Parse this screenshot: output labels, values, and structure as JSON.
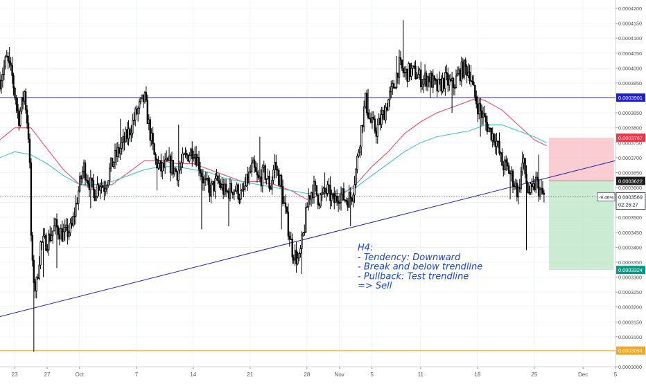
{
  "chart_data": {
    "type": "candlestick",
    "timeframe": "H4",
    "ylim": [
      0.0003,
      0.00042
    ],
    "y_ticks": [
      "0.0003000",
      "0.0003050",
      "0.0003100",
      "0.0003150",
      "0.0003200",
      "0.0003250",
      "0.0003300",
      "0.0003350",
      "0.0003400",
      "0.0003450",
      "0.0003500",
      "0.0003550",
      "0.0003600",
      "0.0003650",
      "0.0003700",
      "0.0003750",
      "0.0003800",
      "0.0003850",
      "0.0003900",
      "0.0003950",
      "0.0004000",
      "0.0004050",
      "0.0004100",
      "0.0004150",
      "0.0004200"
    ],
    "x_ticks": [
      {
        "label": "23",
        "x": 1.0
      },
      {
        "label": "27",
        "x": 5.0
      },
      {
        "label": "Oct",
        "x": 9.0
      },
      {
        "label": "7",
        "x": 16.0
      },
      {
        "label": "14",
        "x": 23.0
      },
      {
        "label": "21",
        "x": 30.0
      },
      {
        "label": "28",
        "x": 37.0
      },
      {
        "label": "Nov",
        "x": 41.0
      },
      {
        "label": "5",
        "x": 45.0
      },
      {
        "label": "11",
        "x": 51.0
      },
      {
        "label": "18",
        "x": 58.0
      },
      {
        "label": "25",
        "x": 65.0
      },
      {
        "label": "Dec",
        "x": 71.0
      },
      {
        "label": "5",
        "x": 75.0
      }
    ],
    "x_range": [
      -0.8,
      75.0
    ],
    "price_path": [
      [
        -0.8,
        0.000396
      ],
      [
        0,
        0.000403
      ],
      [
        0.7,
        0.000397
      ],
      [
        1.5,
        0.000383
      ],
      [
        2.2,
        0.000392
      ],
      [
        2.8,
        0.000375
      ],
      [
        3.1,
        0.000335
      ],
      [
        3.6,
        0.000325
      ],
      [
        4.2,
        0.000341
      ],
      [
        5,
        0.000342
      ],
      [
        6,
        0.000347
      ],
      [
        7,
        0.000344
      ],
      [
        8,
        0.000346
      ],
      [
        8.8,
        0.000358
      ],
      [
        9.5,
        0.000367
      ],
      [
        10,
        0.000363
      ],
      [
        10.8,
        0.000358
      ],
      [
        11.5,
        0.000362
      ],
      [
        12,
        0.00036
      ],
      [
        13,
        0.000368
      ],
      [
        14,
        0.000373
      ],
      [
        15,
        0.000378
      ],
      [
        16,
        0.000385
      ],
      [
        17,
        0.00039
      ],
      [
        17.7,
        0.000378
      ],
      [
        18.3,
        0.000369
      ],
      [
        19,
        0.000366
      ],
      [
        20,
        0.000368
      ],
      [
        21,
        0.000365
      ],
      [
        22,
        0.00037
      ],
      [
        23,
        0.000373
      ],
      [
        23.7,
        0.000368
      ],
      [
        24.3,
        0.000362
      ],
      [
        25,
        0.000359
      ],
      [
        26,
        0.000362
      ],
      [
        27,
        0.000358
      ],
      [
        28,
        0.00036
      ],
      [
        29,
        0.000357
      ],
      [
        29.6,
        0.000362
      ],
      [
        30.3,
        0.000367
      ],
      [
        31,
        0.000362
      ],
      [
        31.8,
        0.000365
      ],
      [
        32.5,
        0.00036
      ],
      [
        33,
        0.000368
      ],
      [
        33.7,
        0.000362
      ],
      [
        34.4,
        0.000351
      ],
      [
        35.2,
        0.000339
      ],
      [
        36,
        0.000335
      ],
      [
        36.6,
        0.000345
      ],
      [
        37.2,
        0.000357
      ],
      [
        37.8,
        0.00036
      ],
      [
        38.5,
        0.000356
      ],
      [
        39.5,
        0.000359
      ],
      [
        40.3,
        0.000355
      ],
      [
        41,
        0.000358
      ],
      [
        41.8,
        0.000356
      ],
      [
        42.5,
        0.000357
      ],
      [
        43,
        0.000365
      ],
      [
        43.6,
        0.000378
      ],
      [
        44.2,
        0.000389
      ],
      [
        44.8,
        0.000382
      ],
      [
        45.5,
        0.000379
      ],
      [
        46.2,
        0.000383
      ],
      [
        47,
        0.000389
      ],
      [
        47.7,
        0.000394
      ],
      [
        48.3,
        0.000401
      ],
      [
        49,
        0.000398
      ],
      [
        49.8,
        0.000399
      ],
      [
        50.5,
        0.000398
      ],
      [
        51.2,
        0.000396
      ],
      [
        52,
        0.000397
      ],
      [
        53,
        0.000393
      ],
      [
        54,
        0.000396
      ],
      [
        55,
        0.000394
      ],
      [
        55.7,
        0.000398
      ],
      [
        56.3,
        0.0004
      ],
      [
        57,
        0.000399
      ],
      [
        57.6,
        0.000391
      ],
      [
        58.1,
        0.000387
      ],
      [
        58.8,
        0.000383
      ],
      [
        59.5,
        0.000379
      ],
      [
        60.3,
        0.000376
      ],
      [
        61,
        0.000368
      ],
      [
        61.8,
        0.000366
      ],
      [
        62.5,
        0.000362
      ],
      [
        63,
        0.000358
      ],
      [
        63.6,
        0.000369
      ],
      [
        64.2,
        0.000359
      ],
      [
        64.7,
        0.000358
      ],
      [
        65.2,
        0.000362
      ],
      [
        65.8,
        0.000358
      ],
      [
        66.3,
        0.000357
      ]
    ],
    "wicks": [
      {
        "x": 0.3,
        "hi": 0.000407
      },
      {
        "x": 3.3,
        "lo": 0.000305
      },
      {
        "x": 4.6,
        "lo": 0.00033
      },
      {
        "x": 6.2,
        "lo": 0.000333
      },
      {
        "x": 10.3,
        "lo": 0.000353
      },
      {
        "x": 14.1,
        "hi": 0.000383
      },
      {
        "x": 17.2,
        "hi": 0.000392
      },
      {
        "x": 18.6,
        "lo": 0.000359
      },
      {
        "x": 21.2,
        "hi": 0.000381
      },
      {
        "x": 24.1,
        "lo": 0.000346
      },
      {
        "x": 27.3,
        "lo": 0.000347
      },
      {
        "x": 31.2,
        "hi": 0.000377
      },
      {
        "x": 33.2,
        "hi": 0.000369
      },
      {
        "x": 33.9,
        "lo": 0.000346
      },
      {
        "x": 36.3,
        "lo": 0.000331
      },
      {
        "x": 39.2,
        "hi": 0.000365
      },
      {
        "x": 42.4,
        "lo": 0.000347
      },
      {
        "x": 44.5,
        "hi": 0.000393
      },
      {
        "x": 48.0,
        "hi": 0.000404
      },
      {
        "x": 48.9,
        "hi": 0.000416
      },
      {
        "x": 52.2,
        "lo": 0.00039
      },
      {
        "x": 54.9,
        "lo": 0.000385
      },
      {
        "x": 57.2,
        "hi": 0.000401
      },
      {
        "x": 58.4,
        "lo": 0.000377
      },
      {
        "x": 62.0,
        "lo": 0.000356
      },
      {
        "x": 63.6,
        "hi": 0.000372
      },
      {
        "x": 64.1,
        "lo": 0.000339
      },
      {
        "x": 65.5,
        "hi": 0.000371
      }
    ],
    "ema_red": [
      [
        -0.8,
        0.000376
      ],
      [
        1,
        0.00038
      ],
      [
        3,
        0.00038
      ],
      [
        5,
        0.000373
      ],
      [
        7,
        0.000366
      ],
      [
        9,
        0.000361
      ],
      [
        11,
        0.00036
      ],
      [
        13,
        0.000361
      ],
      [
        15,
        0.000365
      ],
      [
        17,
        0.000369
      ],
      [
        19,
        0.000369
      ],
      [
        21,
        0.000368
      ],
      [
        23,
        0.000368
      ],
      [
        25,
        0.000366
      ],
      [
        27,
        0.000364
      ],
      [
        29,
        0.000362
      ],
      [
        31,
        0.000362
      ],
      [
        33,
        0.000361
      ],
      [
        35,
        0.000359
      ],
      [
        37,
        0.000356
      ],
      [
        39,
        0.000358
      ],
      [
        41,
        0.000357
      ],
      [
        43,
        0.000361
      ],
      [
        45,
        0.000367
      ],
      [
        47,
        0.000372
      ],
      [
        49,
        0.000378
      ],
      [
        51,
        0.000382
      ],
      [
        53,
        0.000385
      ],
      [
        55,
        0.000387
      ],
      [
        57,
        0.000389
      ],
      [
        58,
        0.00039
      ],
      [
        59,
        0.000389
      ],
      [
        61,
        0.000386
      ],
      [
        63,
        0.000381
      ],
      [
        65,
        0.000376
      ],
      [
        66.5,
        0.000374
      ]
    ],
    "ema_teal": [
      [
        -0.8,
        0.00037
      ],
      [
        1,
        0.000372
      ],
      [
        3,
        0.000371
      ],
      [
        5,
        0.000368
      ],
      [
        7,
        0.000364
      ],
      [
        9,
        0.000361
      ],
      [
        11,
        0.000361
      ],
      [
        13,
        0.000362
      ],
      [
        15,
        0.000364
      ],
      [
        17,
        0.000366
      ],
      [
        19,
        0.000367
      ],
      [
        21,
        0.000367
      ],
      [
        23,
        0.000366
      ],
      [
        25,
        0.000365
      ],
      [
        27,
        0.000363
      ],
      [
        29,
        0.000362
      ],
      [
        31,
        0.000361
      ],
      [
        33,
        0.00036
      ],
      [
        35,
        0.000359
      ],
      [
        37,
        0.000358
      ],
      [
        39,
        0.000358
      ],
      [
        41,
        0.000358
      ],
      [
        43,
        0.00036
      ],
      [
        45,
        0.000364
      ],
      [
        47,
        0.000368
      ],
      [
        49,
        0.000372
      ],
      [
        51,
        0.000375
      ],
      [
        53,
        0.000377
      ],
      [
        55,
        0.000378
      ],
      [
        57,
        0.000379
      ],
      [
        59,
        0.000381
      ],
      [
        61,
        0.000381
      ],
      [
        63,
        0.000379
      ],
      [
        65,
        0.000377
      ],
      [
        66.5,
        0.000375
      ]
    ],
    "resistance_line": {
      "value": 0.0003901,
      "label": "0.0003901",
      "color": "#1e22c8"
    },
    "support_line": {
      "value": 0.0003054,
      "label": "0.0003054",
      "color": "#f5a623"
    },
    "current_price_line": {
      "value": 0.0003569,
      "label": "0.0003569",
      "countdown": "02:26:27",
      "change": "-9.46%"
    },
    "trendline": {
      "from": [
        -0.8,
        0.0003168
      ],
      "to": [
        75.0,
        0.000369
      ],
      "color": "#1e22c8"
    },
    "position": {
      "x_start": 66.8,
      "x_end": 74.8,
      "entry": 0.0003622,
      "stop": 0.0003767,
      "target": 0.0003324,
      "entry_label": "0.0003622",
      "stop_label": "0.0003767",
      "target_label": "0.0003324",
      "stop_color": "#f23645",
      "target_color": "#089981"
    },
    "annotation": {
      "lines": [
        "H4:",
        "- Tendency: Downward",
        "- Break and below trendline",
        "- Pullback: Test trendline",
        "=> Sell"
      ],
      "color": "#1848c8"
    },
    "colors": {
      "ema_red": "#ef4d68",
      "ema_teal": "#3ec6cf",
      "candle": "#000000",
      "grid": "#f0f3fa",
      "axis_text": "#555555"
    }
  }
}
